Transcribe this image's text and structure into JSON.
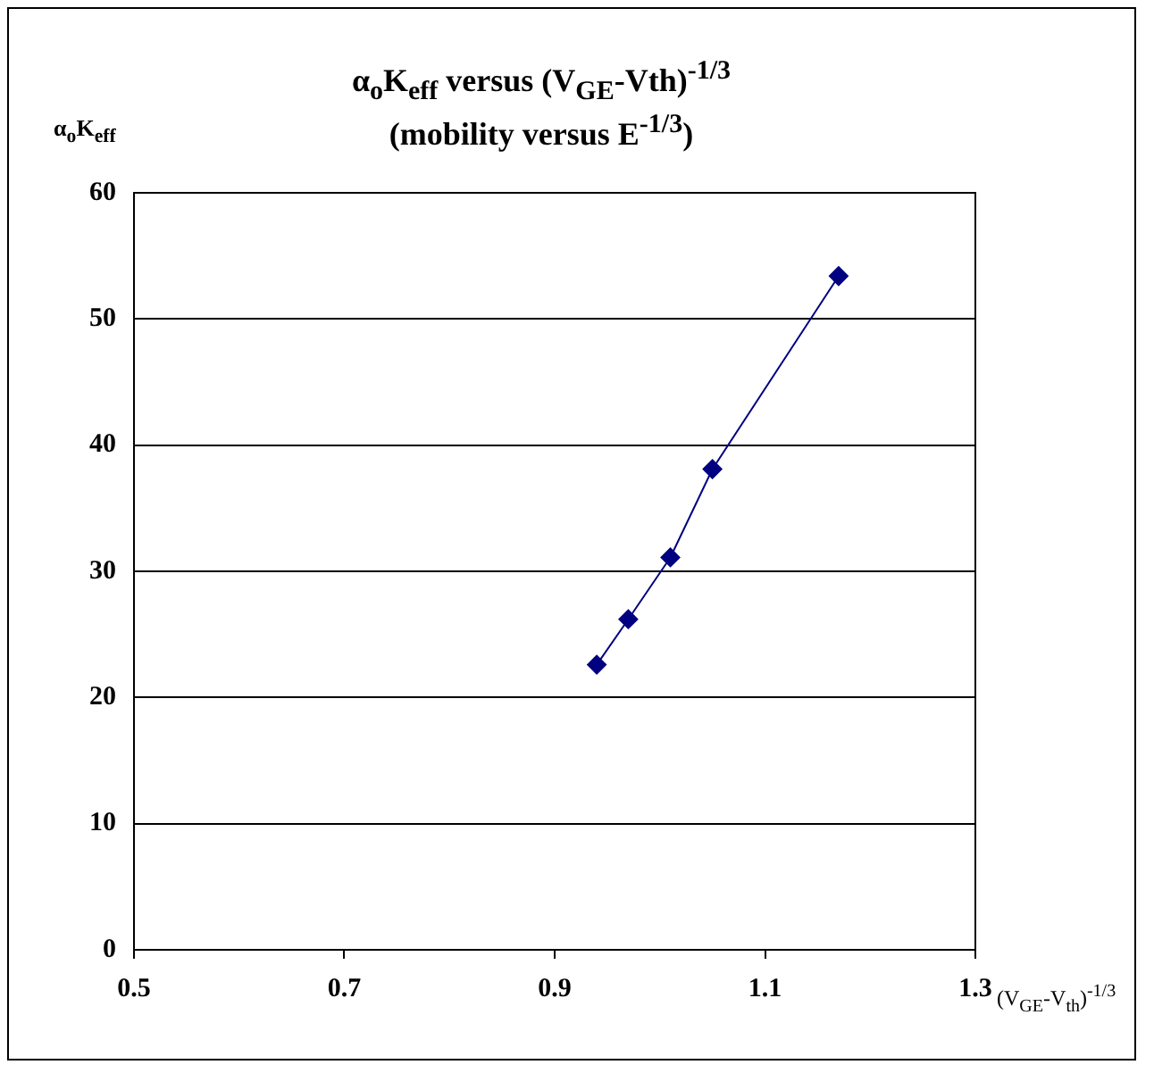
{
  "chart_data": {
    "type": "line",
    "title": "α$_{o}$K$_{eff}$ versus (V$_{GE}$-Vth)$^{-1/3}$",
    "subtitle": "(mobility versus E$^{-1/3}$)",
    "xlabel": "(V$_{GE}$-V$_{th}$)$^{-1/3}$",
    "ylabel": "α$_{o}$K$_{eff}$",
    "x": [
      0.94,
      0.97,
      1.01,
      1.05,
      1.17
    ],
    "series": [
      {
        "color": "#000080",
        "values": [
          22.6,
          26.2,
          31.1,
          38.1,
          53.4
        ]
      }
    ],
    "xlim": [
      0.5,
      1.3
    ],
    "xticks": [
      0.5,
      0.7,
      0.9,
      1.1,
      1.3
    ],
    "ylim": [
      0,
      60
    ],
    "yticks": [
      0,
      10,
      20,
      30,
      40,
      50,
      60
    ],
    "grid": "y",
    "legend": false,
    "marker": "diamond",
    "line_style": "solid"
  }
}
